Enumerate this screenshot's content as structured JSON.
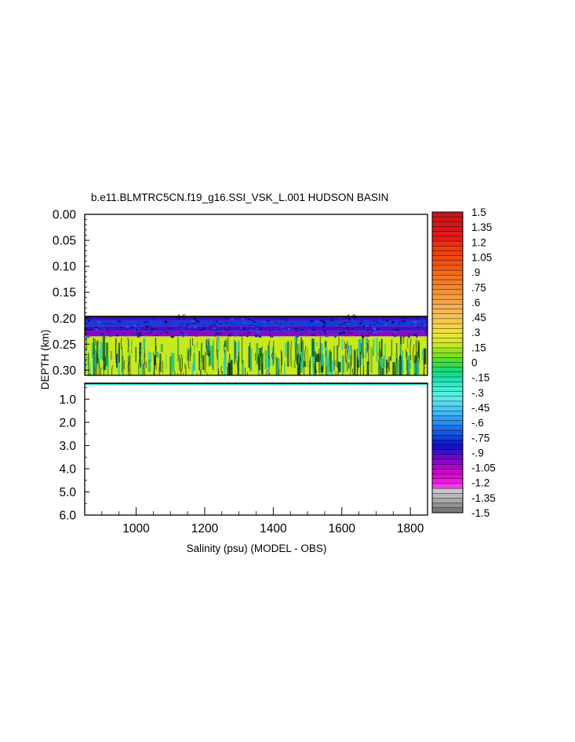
{
  "chart_data": {
    "type": "heatmap",
    "title": "b.e11.BLMTRC5CN.f19_g16.SSI_VSK_L.001 HUDSON BASIN",
    "xlabel": "Salinity (psu) (MODEL - OBS)",
    "ylabel": "DEPTH (km)",
    "xlim": [
      850,
      1850
    ],
    "x_ticks": [
      "1000",
      "1200",
      "1400",
      "1600",
      "1800"
    ],
    "x_tick_values": [
      1000,
      1200,
      1400,
      1600,
      1800
    ],
    "upper_panel": {
      "ylim": [
        0.0,
        0.31
      ],
      "y_ticks": [
        "0.00",
        "0.05",
        "0.10",
        "0.15",
        "0.20",
        "0.25",
        "0.30"
      ],
      "y_tick_values": [
        0.0,
        0.05,
        0.1,
        0.15,
        0.2,
        0.25,
        0.3
      ],
      "data_top_depth": 0.197,
      "bands": [
        {
          "from": 0.197,
          "to": 0.205,
          "value": -0.9
        },
        {
          "from": 0.205,
          "to": 0.215,
          "value": -0.75
        },
        {
          "from": 0.215,
          "to": 0.225,
          "value": -0.9
        },
        {
          "from": 0.225,
          "to": 0.235,
          "value": -1.0
        },
        {
          "from": 0.235,
          "to": 0.31,
          "value": 0.15
        }
      ]
    },
    "lower_panel": {
      "ylim": [
        0.31,
        6.0
      ],
      "y_ticks": [
        "1.0",
        "2.0",
        "3.0",
        "4.0",
        "5.0",
        "6.0"
      ],
      "y_tick_values": [
        1.0,
        2.0,
        3.0,
        4.0,
        5.0,
        6.0
      ],
      "data_band": {
        "from": 0.31,
        "to": 0.38,
        "value": -0.2
      }
    },
    "contour_labels": [
      {
        "text": "-1.5",
        "x": 1130,
        "depth": 0.196
      },
      {
        "text": "-1.5",
        "x": 1625,
        "depth": 0.196
      }
    ],
    "colorbar": {
      "labels": [
        "1.5",
        "1.35",
        "1.2",
        "1.05",
        ".9",
        ".75",
        ".6",
        ".45",
        ".3",
        ".15",
        "0",
        "-.15",
        "-.3",
        "-.45",
        "-.6",
        "-.75",
        "-.9",
        "-1.05",
        "-1.2",
        "-1.35",
        "-1.5"
      ],
      "segment_colors": [
        "#c01818",
        "#c81818",
        "#d01818",
        "#d81818",
        "#e01818",
        "#e81818",
        "#e83010",
        "#ec3c10",
        "#f04010",
        "#f24810",
        "#f45010",
        "#f55a10",
        "#f46a18",
        "#f47420",
        "#f47c28",
        "#f48830",
        "#f49038",
        "#f59c40",
        "#f5a448",
        "#f5b050",
        "#f5b858",
        "#f5c058",
        "#f5c850",
        "#f5d048",
        "#f0dc40",
        "#e8e438",
        "#d8e828",
        "#c8e820",
        "#a0e020",
        "#80e020",
        "#58dc30",
        "#38dc50",
        "#20d870",
        "#18dc90",
        "#20e0b0",
        "#30e8c8",
        "#40f0d8",
        "#58f0e0",
        "#60e8e8",
        "#58d8f0",
        "#48c8f0",
        "#40b8f0",
        "#30a0f0",
        "#2890f0",
        "#2070e8",
        "#1858e0",
        "#1040d8",
        "#0820d0",
        "#1810c8",
        "#4010c8",
        "#6808c8",
        "#8808c8",
        "#a808c8",
        "#c808c8",
        "#e008d0",
        "#f018e0",
        "#f040e8",
        "#c8c8c8",
        "#b8b8b8",
        "#a8a8a8",
        "#909090",
        "#787878"
      ]
    }
  }
}
